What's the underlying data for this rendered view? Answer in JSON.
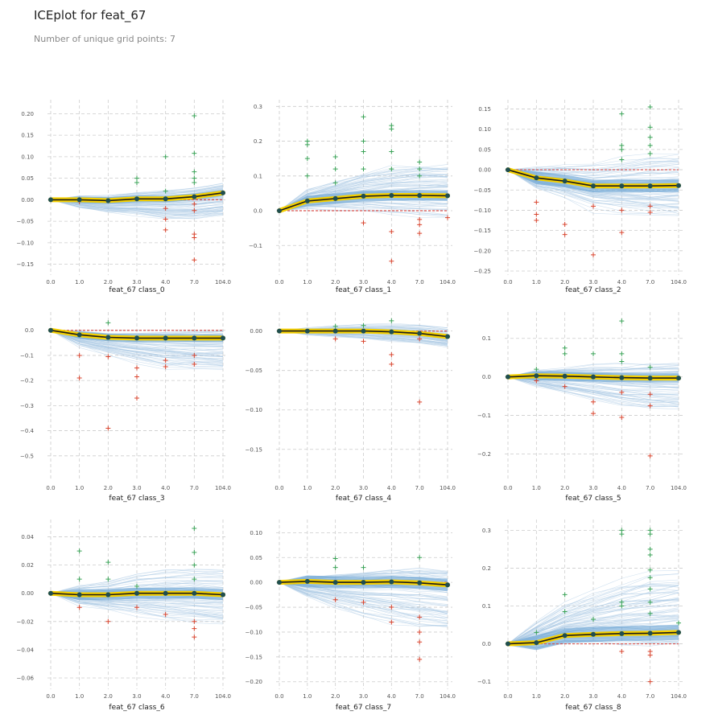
{
  "header": {
    "title": "ICEplot for feat_67",
    "subtitle": "Number of unique grid points: 7"
  },
  "colors": {
    "ice_line": "#a9c9e4",
    "mean_line": "#1a1a1a",
    "mean_halo": "#f5d000",
    "mean_marker": "#1f4e4f",
    "baseline": "#d9534f",
    "plus_up": "#3aa357",
    "plus_down": "#d9452f",
    "grid": "#cccccc"
  },
  "chart_data": [
    {
      "type": "line",
      "xlabel": "feat_67 class_0",
      "categories": [
        "0.0",
        "1.0",
        "2.0",
        "3.0",
        "4.0",
        "7.0",
        "104.0"
      ],
      "yticks": [
        -0.15,
        -0.1,
        -0.05,
        0.0,
        0.05,
        0.1,
        0.15,
        0.2
      ],
      "ytick_labels": [
        "−0.15",
        "−0.10",
        "−0.05",
        "0.00",
        "0.05",
        "0.10",
        "0.15",
        "0.20"
      ],
      "ylim": [
        -0.175,
        0.225
      ],
      "mean": [
        0.0,
        0.0,
        -0.002,
        0.002,
        0.002,
        0.007,
        0.016
      ],
      "ice_range": [
        -0.07,
        0.06
      ],
      "outliers_up": [
        [
          3,
          0.05
        ],
        [
          3,
          0.04
        ],
        [
          4,
          0.1
        ],
        [
          4,
          0.02
        ],
        [
          5,
          0.195
        ],
        [
          5,
          0.108
        ],
        [
          5,
          0.065
        ],
        [
          5,
          0.05
        ],
        [
          5,
          0.04
        ]
      ],
      "outliers_down": [
        [
          1,
          -0.005
        ],
        [
          4,
          -0.02
        ],
        [
          4,
          -0.045
        ],
        [
          4,
          -0.07
        ],
        [
          5,
          -0.01
        ],
        [
          5,
          -0.025
        ],
        [
          5,
          -0.08
        ],
        [
          5,
          -0.088
        ],
        [
          5,
          -0.14
        ]
      ]
    },
    {
      "type": "line",
      "xlabel": "feat_67 class_1",
      "categories": [
        "0.0",
        "1.0",
        "2.0",
        "3.0",
        "4.0",
        "7.0",
        "104.0"
      ],
      "yticks": [
        -0.1,
        0.0,
        0.1,
        0.2,
        0.3
      ],
      "ytick_labels": [
        "−0.1",
        "0.0",
        "0.1",
        "0.2",
        "0.3"
      ],
      "ylim": [
        -0.185,
        0.31
      ],
      "mean": [
        0.0,
        0.028,
        0.035,
        0.042,
        0.044,
        0.044,
        0.043
      ],
      "ice_range": [
        -0.06,
        0.19
      ],
      "outliers_up": [
        [
          1,
          0.2
        ],
        [
          1,
          0.19
        ],
        [
          1,
          0.15
        ],
        [
          1,
          0.1
        ],
        [
          2,
          0.155
        ],
        [
          2,
          0.12
        ],
        [
          2,
          0.08
        ],
        [
          3,
          0.27
        ],
        [
          3,
          0.2
        ],
        [
          3,
          0.17
        ],
        [
          3,
          0.12
        ],
        [
          4,
          0.245
        ],
        [
          4,
          0.235
        ],
        [
          4,
          0.17
        ],
        [
          4,
          0.12
        ],
        [
          5,
          0.14
        ],
        [
          5,
          0.12
        ],
        [
          5,
          0.1
        ]
      ],
      "outliers_down": [
        [
          3,
          -0.035
        ],
        [
          4,
          -0.06
        ],
        [
          4,
          -0.145
        ],
        [
          5,
          -0.025
        ],
        [
          5,
          -0.04
        ],
        [
          5,
          -0.065
        ],
        [
          6,
          -0.02
        ]
      ]
    },
    {
      "type": "line",
      "xlabel": "feat_67 class_2",
      "categories": [
        "0.0",
        "1.0",
        "2.0",
        "3.0",
        "4.0",
        "7.0",
        "104.0"
      ],
      "yticks": [
        -0.25,
        -0.2,
        -0.15,
        -0.1,
        -0.05,
        0.0,
        0.05,
        0.1,
        0.15
      ],
      "ytick_labels": [
        "−0.25",
        "−0.20",
        "−0.15",
        "−0.10",
        "−0.05",
        "0.00",
        "0.05",
        "0.10",
        "0.15"
      ],
      "ylim": [
        -0.26,
        0.165
      ],
      "mean": [
        0.0,
        -0.02,
        -0.028,
        -0.04,
        -0.04,
        -0.04,
        -0.039
      ],
      "ice_range": [
        -0.17,
        0.09
      ],
      "outliers_up": [
        [
          4,
          0.138
        ],
        [
          4,
          0.06
        ],
        [
          4,
          0.05
        ],
        [
          4,
          0.025
        ],
        [
          5,
          0.155
        ],
        [
          5,
          0.105
        ],
        [
          5,
          0.08
        ],
        [
          5,
          0.06
        ],
        [
          5,
          0.04
        ]
      ],
      "outliers_down": [
        [
          1,
          -0.08
        ],
        [
          1,
          -0.11
        ],
        [
          1,
          -0.125
        ],
        [
          2,
          -0.135
        ],
        [
          2,
          -0.16
        ],
        [
          3,
          -0.09
        ],
        [
          3,
          -0.21
        ],
        [
          4,
          -0.155
        ],
        [
          4,
          -0.1
        ],
        [
          5,
          -0.09
        ],
        [
          5,
          -0.105
        ]
      ]
    },
    {
      "type": "line",
      "xlabel": "feat_67 class_3",
      "categories": [
        "0.0",
        "1.0",
        "2.0",
        "3.0",
        "4.0",
        "7.0",
        "104.0"
      ],
      "yticks": [
        -0.5,
        -0.4,
        -0.3,
        -0.2,
        -0.1,
        0.0
      ],
      "ytick_labels": [
        "−0.5",
        "−0.4",
        "−0.3",
        "−0.2",
        "−0.1",
        "0.0"
      ],
      "ylim": [
        -0.6,
        0.06
      ],
      "mean": [
        0.0,
        -0.018,
        -0.028,
        -0.031,
        -0.031,
        -0.031,
        -0.031
      ],
      "ice_range": [
        -0.24,
        0.02
      ],
      "outliers_up": [
        [
          2,
          0.03
        ]
      ],
      "outliers_down": [
        [
          1,
          -0.1
        ],
        [
          1,
          -0.19
        ],
        [
          2,
          -0.105
        ],
        [
          2,
          -0.39
        ],
        [
          3,
          -0.15
        ],
        [
          3,
          -0.185
        ],
        [
          3,
          -0.27
        ],
        [
          4,
          -0.12
        ],
        [
          4,
          -0.145
        ],
        [
          5,
          -0.1
        ],
        [
          5,
          -0.135
        ]
      ]
    },
    {
      "type": "line",
      "xlabel": "feat_67 class_4",
      "categories": [
        "0.0",
        "1.0",
        "2.0",
        "3.0",
        "4.0",
        "7.0",
        "104.0"
      ],
      "yticks": [
        -0.15,
        -0.1,
        -0.05,
        0.0
      ],
      "ytick_labels": [
        "−0.15",
        "−0.10",
        "−0.05",
        "0.00"
      ],
      "ylim": [
        -0.19,
        0.02
      ],
      "mean": [
        0.0,
        0.0,
        0.0,
        0.0,
        -0.001,
        -0.003,
        -0.007
      ],
      "ice_range": [
        -0.03,
        0.012
      ],
      "outliers_up": [
        [
          2,
          0.006
        ],
        [
          3,
          0.007
        ],
        [
          4,
          0.013
        ]
      ],
      "outliers_down": [
        [
          2,
          -0.01
        ],
        [
          3,
          -0.013
        ],
        [
          4,
          -0.03
        ],
        [
          4,
          -0.042
        ],
        [
          5,
          -0.01
        ],
        [
          5,
          -0.09
        ]
      ]
    },
    {
      "type": "line",
      "xlabel": "feat_67 class_5",
      "categories": [
        "0.0",
        "1.0",
        "2.0",
        "3.0",
        "4.0",
        "7.0",
        "104.0"
      ],
      "yticks": [
        -0.2,
        -0.1,
        0.0,
        0.1
      ],
      "ytick_labels": [
        "−0.2",
        "−0.1",
        "0.0",
        "0.1"
      ],
      "ylim": [
        -0.27,
        0.16
      ],
      "mean": [
        0.0,
        0.003,
        0.002,
        0.0,
        -0.002,
        -0.003,
        -0.003
      ],
      "ice_range": [
        -0.14,
        0.06
      ],
      "outliers_up": [
        [
          1,
          0.02
        ],
        [
          2,
          0.075
        ],
        [
          2,
          0.06
        ],
        [
          3,
          0.06
        ],
        [
          4,
          0.145
        ],
        [
          4,
          0.06
        ],
        [
          4,
          0.04
        ],
        [
          5,
          0.025
        ]
      ],
      "outliers_down": [
        [
          1,
          -0.01
        ],
        [
          2,
          -0.025
        ],
        [
          3,
          -0.065
        ],
        [
          3,
          -0.095
        ],
        [
          4,
          -0.04
        ],
        [
          4,
          -0.105
        ],
        [
          5,
          -0.045
        ],
        [
          5,
          -0.075
        ],
        [
          5,
          -0.205
        ]
      ]
    },
    {
      "type": "line",
      "xlabel": "feat_67 class_6",
      "categories": [
        "0.0",
        "1.0",
        "2.0",
        "3.0",
        "4.0",
        "7.0",
        "104.0"
      ],
      "yticks": [
        -0.06,
        -0.04,
        -0.02,
        0.0,
        0.02,
        0.04
      ],
      "ytick_labels": [
        "−0.06",
        "−0.04",
        "−0.02",
        "0.00",
        "0.02",
        "0.04"
      ],
      "ylim": [
        -0.068,
        0.05
      ],
      "mean": [
        0.0,
        -0.001,
        -0.001,
        0.0,
        0.0,
        0.0,
        -0.001
      ],
      "ice_range": [
        -0.035,
        0.03
      ],
      "outliers_up": [
        [
          1,
          0.03
        ],
        [
          1,
          0.01
        ],
        [
          2,
          0.022
        ],
        [
          2,
          0.01
        ],
        [
          3,
          0.005
        ],
        [
          5,
          0.046
        ],
        [
          5,
          0.029
        ],
        [
          5,
          0.02
        ],
        [
          5,
          0.01
        ]
      ],
      "outliers_down": [
        [
          1,
          -0.01
        ],
        [
          2,
          -0.02
        ],
        [
          3,
          -0.01
        ],
        [
          4,
          -0.015
        ],
        [
          5,
          -0.02
        ],
        [
          5,
          -0.025
        ],
        [
          5,
          -0.031
        ]
      ]
    },
    {
      "type": "line",
      "xlabel": "feat_67 class_7",
      "categories": [
        "0.0",
        "1.0",
        "2.0",
        "3.0",
        "4.0",
        "7.0",
        "104.0"
      ],
      "yticks": [
        -0.2,
        -0.15,
        -0.1,
        -0.05,
        0.0,
        0.05,
        0.1
      ],
      "ytick_labels": [
        "−0.20",
        "−0.15",
        "−0.10",
        "−0.05",
        "0.00",
        "0.05",
        "0.10"
      ],
      "ylim": [
        -0.215,
        0.12
      ],
      "mean": [
        0.0,
        0.002,
        0.0,
        0.0,
        0.001,
        -0.001,
        -0.005
      ],
      "ice_range": [
        -0.15,
        0.05
      ],
      "outliers_up": [
        [
          2,
          0.048
        ],
        [
          2,
          0.03
        ],
        [
          3,
          0.03
        ],
        [
          5,
          0.05
        ]
      ],
      "outliers_down": [
        [
          2,
          -0.035
        ],
        [
          3,
          -0.04
        ],
        [
          4,
          -0.05
        ],
        [
          4,
          -0.08
        ],
        [
          5,
          -0.07
        ],
        [
          5,
          -0.1
        ],
        [
          5,
          -0.12
        ],
        [
          5,
          -0.155
        ]
      ]
    },
    {
      "type": "line",
      "xlabel": "feat_67 class_8",
      "categories": [
        "0.0",
        "1.0",
        "2.0",
        "3.0",
        "4.0",
        "7.0",
        "104.0"
      ],
      "yticks": [
        -0.1,
        0.0,
        0.1,
        0.2,
        0.3
      ],
      "ytick_labels": [
        "−0.1",
        "0.0",
        "0.1",
        "0.2",
        "0.3"
      ],
      "ylim": [
        -0.12,
        0.32
      ],
      "mean": [
        0.0,
        0.003,
        0.022,
        0.025,
        0.027,
        0.028,
        0.03
      ],
      "ice_range": [
        -0.03,
        0.3
      ],
      "outliers_up": [
        [
          1,
          0.03
        ],
        [
          2,
          0.13
        ],
        [
          2,
          0.085
        ],
        [
          3,
          0.065
        ],
        [
          4,
          0.3
        ],
        [
          4,
          0.29
        ],
        [
          4,
          0.11
        ],
        [
          4,
          0.1
        ],
        [
          5,
          0.3
        ],
        [
          5,
          0.29
        ],
        [
          5,
          0.25
        ],
        [
          5,
          0.235
        ],
        [
          5,
          0.195
        ],
        [
          5,
          0.175
        ],
        [
          5,
          0.145
        ],
        [
          5,
          0.11
        ],
        [
          5,
          0.08
        ],
        [
          6,
          0.055
        ]
      ],
      "outliers_down": [
        [
          4,
          -0.02
        ],
        [
          5,
          -0.02
        ],
        [
          5,
          -0.03
        ],
        [
          5,
          -0.1
        ]
      ]
    }
  ]
}
